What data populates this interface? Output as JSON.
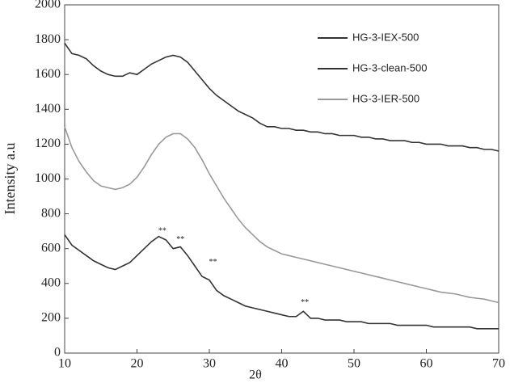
{
  "chart_data": {
    "type": "line",
    "x_label": "2θ",
    "y_label": "Intensity a.u",
    "x": [
      10,
      11,
      12,
      13,
      14,
      15,
      16,
      17,
      18,
      19,
      20,
      21,
      22,
      23,
      24,
      25,
      26,
      27,
      28,
      29,
      30,
      31,
      32,
      33,
      34,
      35,
      36,
      37,
      38,
      39,
      40,
      41,
      42,
      43,
      44,
      45,
      46,
      47,
      48,
      49,
      50,
      51,
      52,
      53,
      54,
      55,
      56,
      57,
      58,
      59,
      60,
      61,
      62,
      63,
      64,
      65,
      66,
      67,
      68,
      69,
      70
    ],
    "series": [
      {
        "name": "HG-3-IEX-500",
        "color": "#333333",
        "values": [
          1780,
          1720,
          1710,
          1690,
          1650,
          1620,
          1600,
          1590,
          1590,
          1610,
          1600,
          1630,
          1660,
          1680,
          1700,
          1710,
          1700,
          1670,
          1620,
          1570,
          1520,
          1480,
          1450,
          1420,
          1390,
          1370,
          1350,
          1320,
          1300,
          1300,
          1290,
          1290,
          1280,
          1280,
          1270,
          1270,
          1260,
          1260,
          1250,
          1250,
          1250,
          1240,
          1240,
          1230,
          1230,
          1220,
          1220,
          1220,
          1210,
          1210,
          1200,
          1200,
          1200,
          1190,
          1190,
          1190,
          1180,
          1180,
          1170,
          1170,
          1160
        ]
      },
      {
        "name": "HG-3-clean-500",
        "color": "#333333",
        "values": [
          680,
          620,
          590,
          560,
          530,
          510,
          490,
          480,
          500,
          520,
          560,
          600,
          640,
          670,
          650,
          600,
          610,
          560,
          500,
          440,
          420,
          360,
          330,
          310,
          290,
          270,
          260,
          250,
          240,
          230,
          220,
          210,
          210,
          240,
          200,
          200,
          190,
          190,
          190,
          180,
          180,
          180,
          170,
          170,
          170,
          170,
          160,
          160,
          160,
          160,
          160,
          150,
          150,
          150,
          150,
          150,
          150,
          140,
          140,
          140,
          140
        ]
      },
      {
        "name": "HG-3-IER-500",
        "color": "#999999",
        "values": [
          1300,
          1180,
          1100,
          1040,
          990,
          960,
          950,
          940,
          950,
          970,
          1010,
          1070,
          1140,
          1200,
          1240,
          1260,
          1260,
          1230,
          1180,
          1110,
          1030,
          960,
          890,
          830,
          770,
          720,
          680,
          640,
          610,
          590,
          570,
          560,
          550,
          540,
          530,
          520,
          510,
          500,
          490,
          480,
          470,
          460,
          450,
          440,
          430,
          420,
          410,
          400,
          390,
          380,
          370,
          360,
          350,
          345,
          340,
          330,
          320,
          315,
          310,
          300,
          290
        ]
      }
    ],
    "annotations": [
      {
        "text": "**",
        "x": 23.5,
        "y": 700
      },
      {
        "text": "**",
        "x": 26,
        "y": 650
      },
      {
        "text": "**",
        "x": 30.5,
        "y": 520
      },
      {
        "text": "**",
        "x": 43.2,
        "y": 290
      }
    ],
    "xlim": [
      10,
      70
    ],
    "xticks": [
      10,
      20,
      30,
      40,
      50,
      60,
      70
    ],
    "ylim": [
      0,
      2000
    ],
    "yticks": [
      0,
      200,
      400,
      600,
      800,
      1000,
      1200,
      1400,
      1600,
      1800,
      2000
    ],
    "legend": "upper right",
    "grid": false
  }
}
